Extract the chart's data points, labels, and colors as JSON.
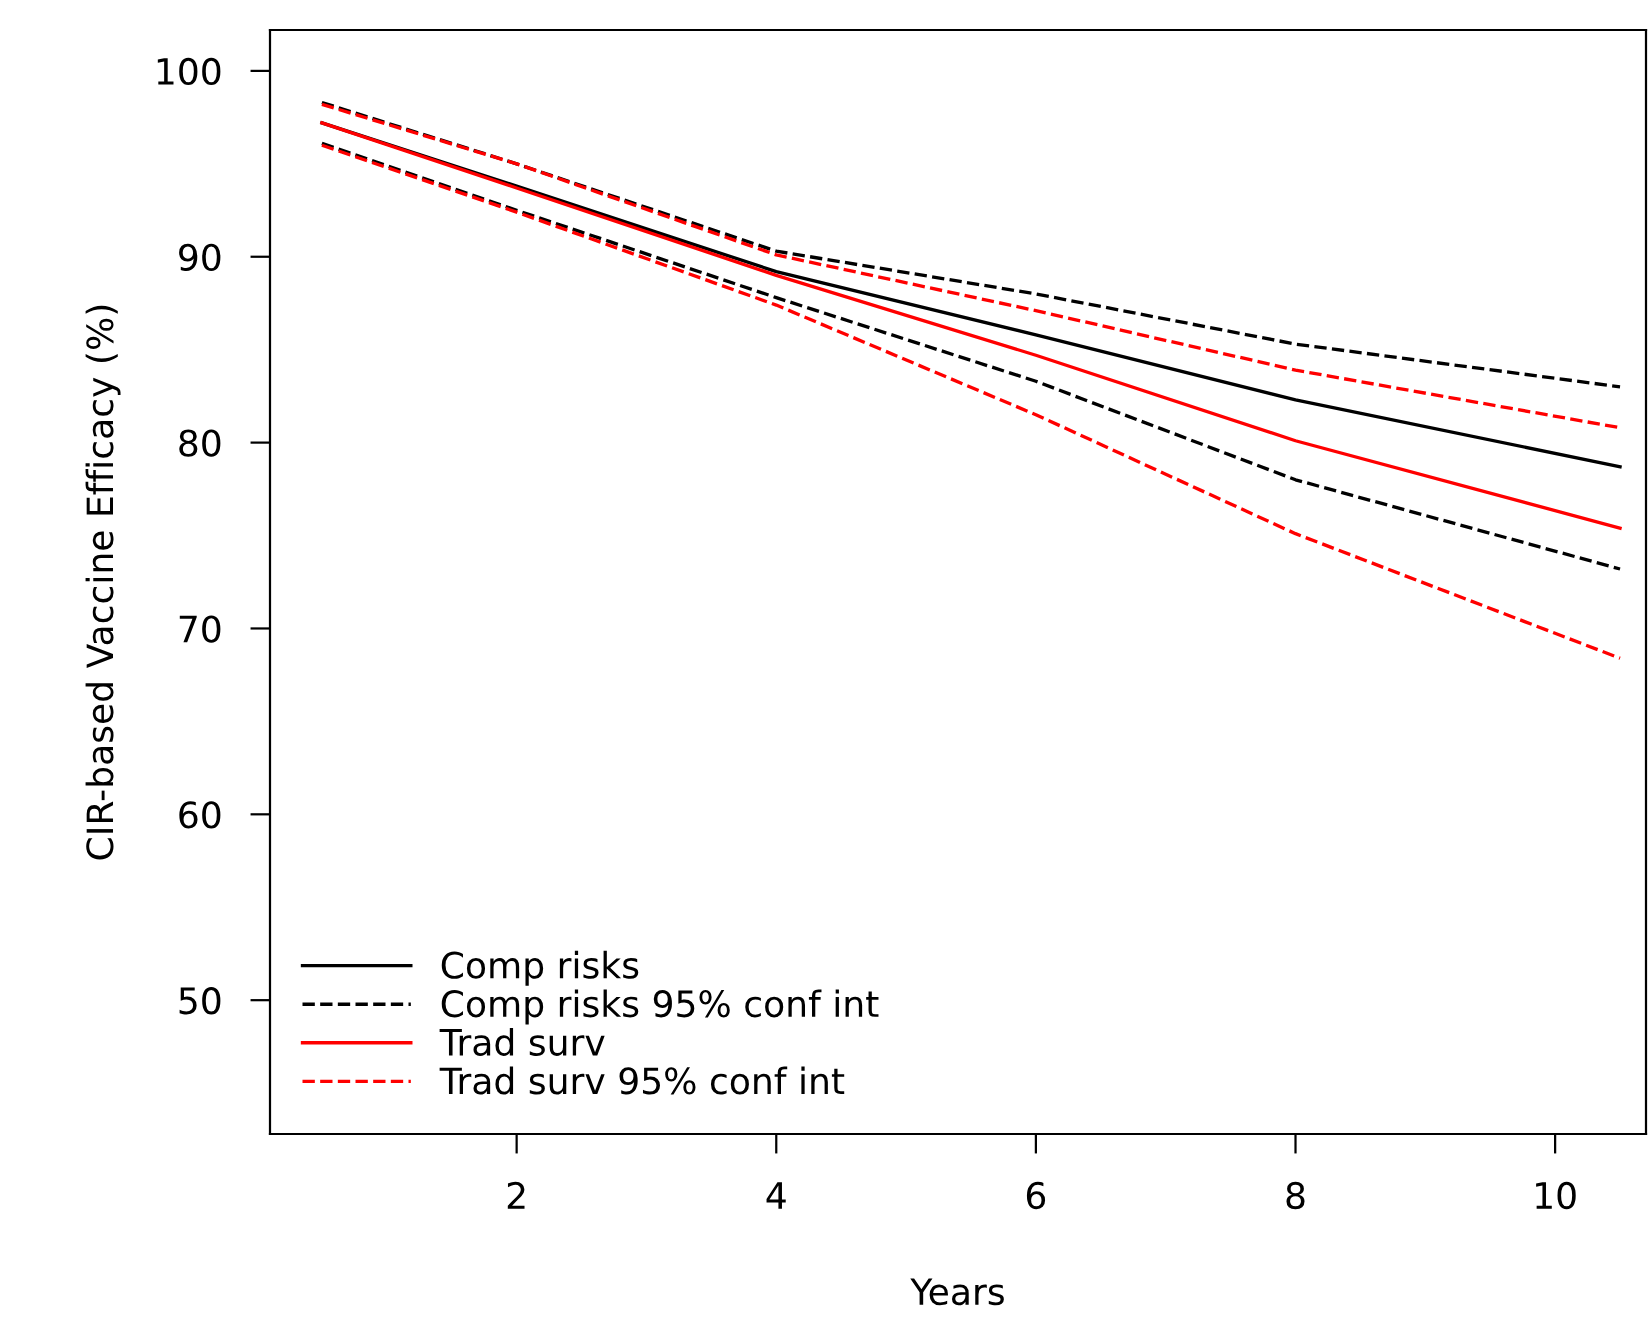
{
  "chart_data": {
    "type": "line",
    "xlabel": "Years",
    "ylabel": "CIR-based Vaccine Efficacy (%)",
    "x": [
      0.5,
      2,
      4,
      6,
      8,
      10.5
    ],
    "series": [
      {
        "name": "Comp risks",
        "color": "#000000",
        "line_style": "solid",
        "values": [
          97.2,
          93.8,
          89.2,
          85.8,
          82.3,
          78.7
        ]
      },
      {
        "name": "Comp risks 95% conf int",
        "color": "#000000",
        "line_style": "dashed",
        "values": [
          98.3,
          95.0,
          90.3,
          88.0,
          85.3,
          83.0
        ]
      },
      {
        "name": null,
        "color": "#000000",
        "line_style": "dashed",
        "values": [
          96.1,
          92.5,
          87.8,
          83.3,
          78.0,
          73.2
        ]
      },
      {
        "name": "Trad surv",
        "color": "#ff0000",
        "line_style": "solid",
        "values": [
          97.2,
          93.7,
          89.0,
          84.7,
          80.1,
          75.4
        ]
      },
      {
        "name": "Trad surv 95% conf int",
        "color": "#ff0000",
        "line_style": "dashed",
        "values": [
          98.2,
          95.0,
          90.1,
          87.1,
          83.9,
          80.8
        ]
      },
      {
        "name": null,
        "color": "#ff0000",
        "line_style": "dashed",
        "values": [
          96.0,
          92.4,
          87.4,
          81.5,
          75.1,
          68.4
        ]
      }
    ],
    "xlim": [
      0.1,
      10.7
    ],
    "ylim": [
      42.8,
      102.2
    ],
    "xticks": [
      2,
      4,
      6,
      8,
      10
    ],
    "yticks": [
      50,
      60,
      70,
      80,
      90,
      100
    ],
    "grid": false,
    "legend": "bottom left",
    "marker": "none"
  }
}
